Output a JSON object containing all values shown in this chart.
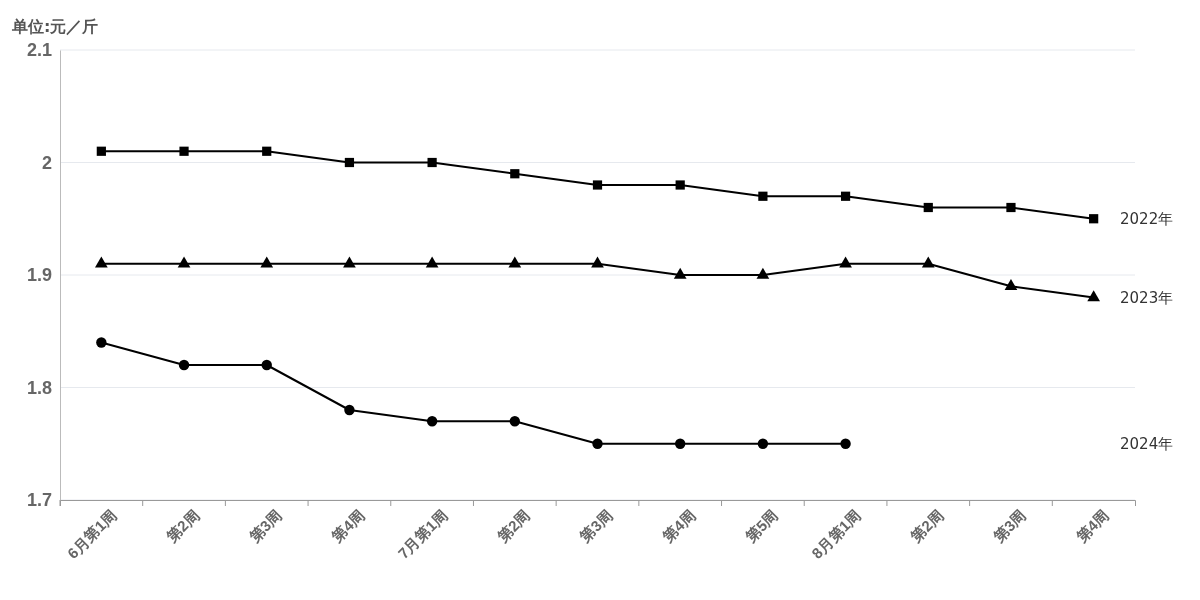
{
  "chart_data": {
    "type": "line",
    "ylabel": "单位:元／斤",
    "categories": [
      "6月第1周",
      "第2周",
      "第3周",
      "第4周",
      "7月第1周",
      "第2周",
      "第3周",
      "第4周",
      "第5周",
      "8月第1周",
      "第2周",
      "第3周",
      "第4周"
    ],
    "series": [
      {
        "name": "2022年",
        "color": "#000000",
        "marker": "square",
        "values": [
          2.01,
          2.01,
          2.01,
          2.0,
          2.0,
          1.99,
          1.98,
          1.98,
          1.97,
          1.97,
          1.96,
          1.96,
          1.95
        ]
      },
      {
        "name": "2023年",
        "color": "#000000",
        "marker": "triangle",
        "values": [
          1.91,
          1.91,
          1.91,
          1.91,
          1.91,
          1.91,
          1.91,
          1.9,
          1.9,
          1.91,
          1.91,
          1.89,
          1.88
        ]
      },
      {
        "name": "2024年",
        "color": "#000000",
        "marker": "circle",
        "values": [
          1.84,
          1.82,
          1.82,
          1.78,
          1.77,
          1.77,
          1.75,
          1.75,
          1.75,
          1.75,
          null,
          null,
          null
        ]
      }
    ],
    "ylim": [
      1.7,
      2.1
    ],
    "yticks": [
      1.7,
      1.8,
      1.9,
      2,
      2.1
    ],
    "grid": "y",
    "line_style": "solid"
  }
}
